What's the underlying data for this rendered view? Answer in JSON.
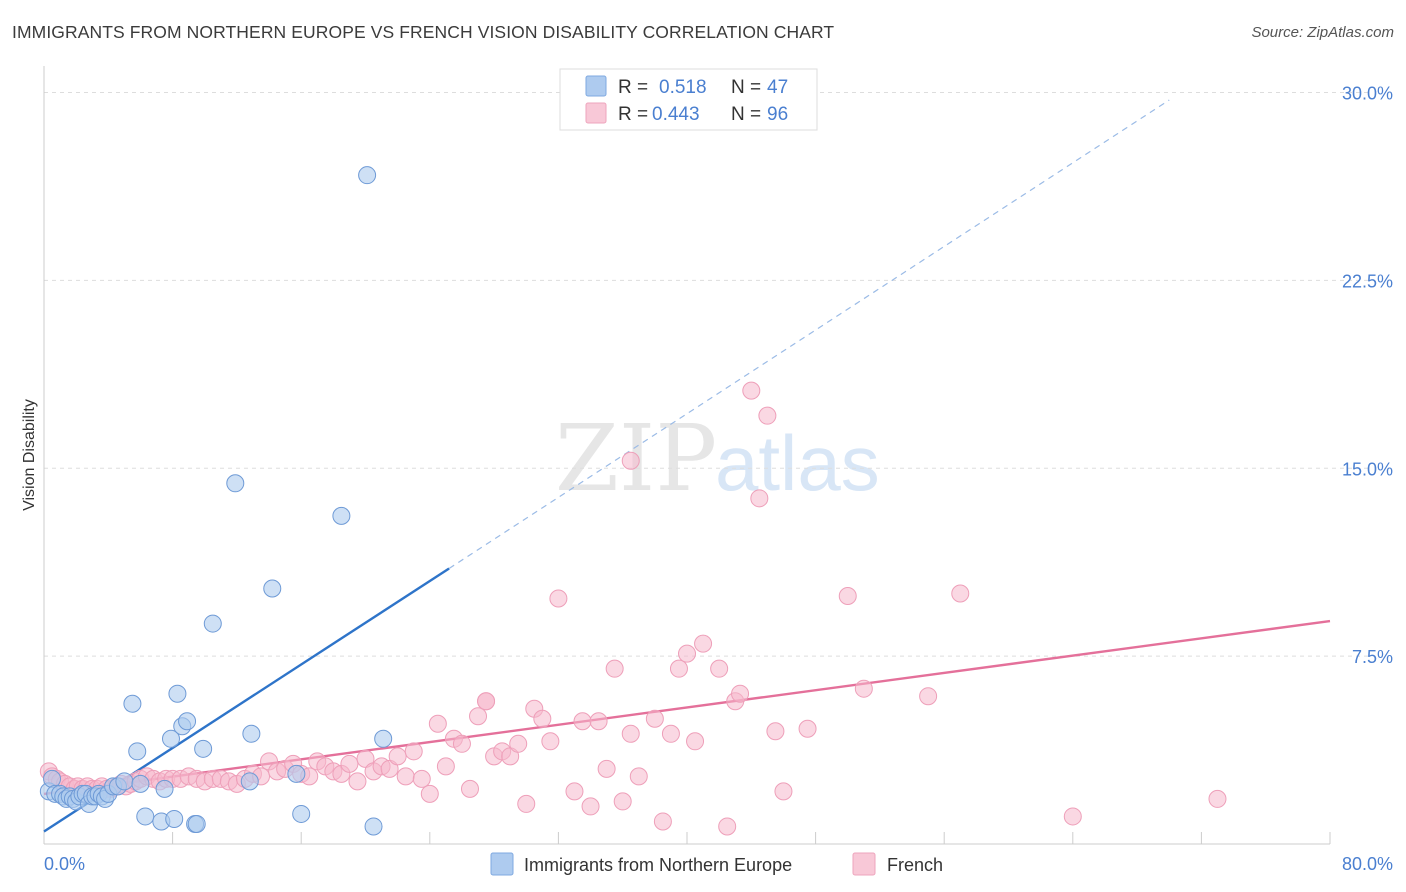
{
  "header": {
    "title": "IMMIGRANTS FROM NORTHERN EUROPE VS FRENCH VISION DISABILITY CORRELATION CHART",
    "source": "Source: ZipAtlas.com"
  },
  "watermark": {
    "zip": "ZIP",
    "atlas": "atlas"
  },
  "colors": {
    "blue": "#4a7fd0",
    "blue_fill": "#aecbef",
    "blue_line": "#2e74c9",
    "pink_fill": "#f6b8cc",
    "pink_line": "#e4709a",
    "grid": "#dddddd"
  },
  "chart_data": {
    "type": "scatter",
    "title": "IMMIGRANTS FROM NORTHERN EUROPE VS FRENCH VISION DISABILITY CORRELATION CHART",
    "xlabel": "",
    "ylabel": "Vision Disability",
    "xlim": [
      0,
      80
    ],
    "ylim": [
      0,
      30.5
    ],
    "x_tick_labels": [
      "0.0%",
      "80.0%"
    ],
    "y_ticks": [
      7.5,
      15.0,
      22.5,
      30.0
    ],
    "y_tick_labels": [
      "7.5%",
      "15.0%",
      "22.5%",
      "30.0%"
    ],
    "legend": [
      {
        "r_label": "R =",
        "r_value": "0.518",
        "n_label": "N =",
        "n_value": "47"
      },
      {
        "r_label": "R =",
        "r_value": "0.443",
        "n_label": "N =",
        "n_value": "96"
      }
    ],
    "series": [
      {
        "name": "Immigrants from Northern Europe",
        "color": "#4a7fd0",
        "trend": {
          "x0": 0,
          "y0": 0.5,
          "x1": 25.2,
          "y1": 11.0,
          "dash_to_x": 70.0,
          "dash_to_y": 29.7
        },
        "points": [
          [
            0.3,
            2.1
          ],
          [
            0.5,
            2.6
          ],
          [
            0.7,
            2.0
          ],
          [
            1.0,
            2.0
          ],
          [
            1.2,
            1.9
          ],
          [
            1.4,
            1.8
          ],
          [
            1.6,
            1.9
          ],
          [
            1.8,
            1.8
          ],
          [
            2.0,
            1.7
          ],
          [
            2.2,
            1.9
          ],
          [
            2.4,
            2.0
          ],
          [
            2.6,
            2.0
          ],
          [
            2.8,
            1.6
          ],
          [
            3.0,
            1.9
          ],
          [
            3.2,
            1.9
          ],
          [
            3.4,
            2.0
          ],
          [
            3.6,
            1.9
          ],
          [
            3.8,
            1.8
          ],
          [
            4.0,
            2.0
          ],
          [
            4.3,
            2.3
          ],
          [
            4.6,
            2.3
          ],
          [
            5.0,
            2.5
          ],
          [
            5.5,
            5.6
          ],
          [
            5.8,
            3.7
          ],
          [
            6.0,
            2.4
          ],
          [
            7.5,
            2.2
          ],
          [
            7.9,
            4.2
          ],
          [
            8.3,
            6.0
          ],
          [
            8.6,
            4.7
          ],
          [
            8.9,
            4.9
          ],
          [
            9.4,
            0.8
          ],
          [
            9.9,
            3.8
          ],
          [
            10.5,
            8.8
          ],
          [
            11.9,
            14.4
          ],
          [
            12.8,
            2.5
          ],
          [
            12.9,
            4.4
          ],
          [
            14.2,
            10.2
          ],
          [
            15.7,
            2.8
          ],
          [
            16.0,
            1.2
          ],
          [
            18.5,
            13.1
          ],
          [
            20.1,
            26.7
          ],
          [
            21.1,
            4.2
          ],
          [
            20.5,
            0.7
          ],
          [
            6.3,
            1.1
          ],
          [
            7.3,
            0.9
          ],
          [
            8.1,
            1.0
          ],
          [
            9.5,
            0.8
          ]
        ]
      },
      {
        "name": "French",
        "color": "#f6b8cc",
        "trend": {
          "x0": 0,
          "y0": 2.0,
          "x1": 80,
          "y1": 8.9
        },
        "points": [
          [
            0.3,
            2.9
          ],
          [
            0.5,
            2.7
          ],
          [
            0.8,
            2.6
          ],
          [
            1.0,
            2.5
          ],
          [
            1.3,
            2.4
          ],
          [
            1.6,
            2.3
          ],
          [
            1.9,
            2.2
          ],
          [
            2.1,
            2.3
          ],
          [
            2.4,
            2.2
          ],
          [
            2.7,
            2.3
          ],
          [
            3.0,
            2.2
          ],
          [
            3.3,
            2.2
          ],
          [
            3.6,
            2.3
          ],
          [
            3.9,
            2.2
          ],
          [
            4.2,
            2.2
          ],
          [
            4.5,
            2.3
          ],
          [
            4.8,
            2.4
          ],
          [
            5.1,
            2.3
          ],
          [
            5.4,
            2.4
          ],
          [
            5.7,
            2.5
          ],
          [
            6.0,
            2.6
          ],
          [
            6.4,
            2.7
          ],
          [
            6.8,
            2.6
          ],
          [
            7.2,
            2.5
          ],
          [
            7.6,
            2.6
          ],
          [
            8.0,
            2.6
          ],
          [
            8.5,
            2.6
          ],
          [
            9.0,
            2.7
          ],
          [
            9.5,
            2.6
          ],
          [
            10.0,
            2.5
          ],
          [
            10.5,
            2.6
          ],
          [
            11.0,
            2.6
          ],
          [
            11.5,
            2.5
          ],
          [
            12.0,
            2.4
          ],
          [
            12.5,
            2.6
          ],
          [
            13.0,
            2.8
          ],
          [
            13.5,
            2.7
          ],
          [
            14.0,
            3.3
          ],
          [
            14.5,
            2.9
          ],
          [
            15.0,
            3.0
          ],
          [
            15.5,
            3.2
          ],
          [
            16.0,
            2.8
          ],
          [
            16.5,
            2.7
          ],
          [
            17.0,
            3.3
          ],
          [
            17.5,
            3.1
          ],
          [
            18.0,
            2.9
          ],
          [
            18.5,
            2.8
          ],
          [
            19.0,
            3.2
          ],
          [
            19.5,
            2.5
          ],
          [
            20.0,
            3.4
          ],
          [
            20.5,
            2.9
          ],
          [
            21.0,
            3.1
          ],
          [
            21.5,
            3.0
          ],
          [
            22.0,
            3.5
          ],
          [
            22.5,
            2.7
          ],
          [
            23.0,
            3.7
          ],
          [
            23.5,
            2.6
          ],
          [
            24.0,
            2.0
          ],
          [
            24.5,
            4.8
          ],
          [
            25.0,
            3.1
          ],
          [
            25.5,
            4.2
          ],
          [
            26.0,
            4.0
          ],
          [
            26.5,
            2.2
          ],
          [
            27.0,
            5.1
          ],
          [
            27.5,
            5.7
          ],
          [
            28.0,
            3.5
          ],
          [
            28.5,
            3.7
          ],
          [
            29.0,
            3.5
          ],
          [
            29.5,
            4.0
          ],
          [
            30.0,
            1.6
          ],
          [
            30.5,
            5.4
          ],
          [
            31.0,
            5.0
          ],
          [
            31.5,
            4.1
          ],
          [
            32.0,
            9.8
          ],
          [
            33.0,
            2.1
          ],
          [
            33.5,
            4.9
          ],
          [
            34.0,
            1.5
          ],
          [
            34.5,
            4.9
          ],
          [
            35.0,
            3.0
          ],
          [
            35.5,
            7.0
          ],
          [
            36.0,
            1.7
          ],
          [
            36.5,
            4.4
          ],
          [
            37.0,
            2.7
          ],
          [
            38.0,
            5.0
          ],
          [
            38.5,
            0.9
          ],
          [
            39.0,
            4.4
          ],
          [
            39.5,
            7.0
          ],
          [
            40.0,
            7.6
          ],
          [
            40.5,
            4.1
          ],
          [
            41.0,
            8.0
          ],
          [
            42.0,
            7.0
          ],
          [
            42.5,
            0.7
          ],
          [
            43.0,
            5.7
          ],
          [
            43.3,
            6.0
          ],
          [
            44.0,
            18.1
          ],
          [
            44.5,
            13.8
          ]
        ],
        "extra_points": [
          [
            45.0,
            17.1
          ],
          [
            45.5,
            4.5
          ],
          [
            46.0,
            2.1
          ],
          [
            47.5,
            4.6
          ],
          [
            50.0,
            9.9
          ],
          [
            51.0,
            6.2
          ],
          [
            55.0,
            5.9
          ],
          [
            57.0,
            10.0
          ],
          [
            64.0,
            1.1
          ],
          [
            73.0,
            1.8
          ],
          [
            36.5,
            15.3
          ],
          [
            27.5,
            5.7
          ]
        ]
      }
    ],
    "bottom_legend": [
      "Immigrants from Northern Europe",
      "French"
    ]
  }
}
